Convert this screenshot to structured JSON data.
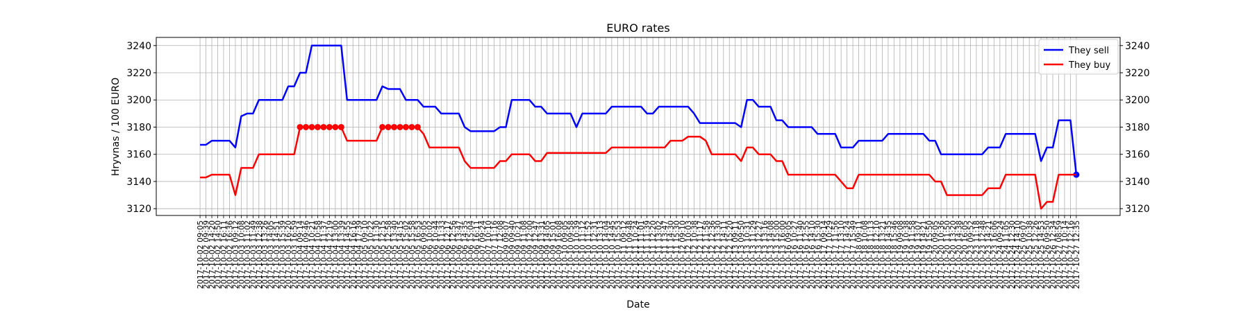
{
  "chart_data": {
    "type": "line",
    "title": "EURO rates",
    "x_label": "Date",
    "y_label": "Hryvnas / 100 EURO",
    "categories": [
      "2017-10-02 09:05",
      "2017-10-02 09:39",
      "2017-10-02 14:20",
      "2017-10-02 14:50",
      "2017-10-02 16:11",
      "2017-10-02 16:36",
      "2017-10-03 09:12",
      "2017-10-03 10:08",
      "2017-10-03 11:02",
      "2017-10-03 11:49",
      "2017-10-03 12:38",
      "2017-10-03 13:26",
      "2017-10-03 14:05",
      "2017-10-03 14:51",
      "2017-10-03 15:39",
      "2017-10-03 16:20",
      "2017-10-03 16:59",
      "2017-10-04 09:14",
      "2017-10-04 09:46",
      "2017-10-04 10:21",
      "2017-10-04 10:58",
      "2017-10-04 11:37",
      "2017-10-04 12:19",
      "2017-10-04 13:00",
      "2017-10-04 13:39",
      "2017-10-04 14:55",
      "2017-10-04 16:16",
      "2017-10-04 17:39",
      "2017-10-05 09:10",
      "2017-10-05 10:22",
      "2017-10-05 11:30",
      "2017-10-05 12:15",
      "2017-10-05 12:58",
      "2017-10-05 13:40",
      "2017-10-05 14:15",
      "2017-10-05 15:02",
      "2017-10-05 15:58",
      "2017-10-05 16:53",
      "2017-10-06 09:05",
      "2017-10-06 10:02",
      "2017-10-06 10:44",
      "2017-10-06 11:33",
      "2017-10-06 12:17",
      "2017-10-06 12:56",
      "2017-10-06 13:47",
      "2017-10-06 14:35",
      "2017-10-06 15:04",
      "2017-10-06 16:11",
      "2017-10-07 09:24",
      "2017-10-07 10:10",
      "2017-10-07 11:16",
      "2017-10-07 12:08",
      "2017-10-09 09:07",
      "2017-10-09 09:40",
      "2017-10-09 10:21",
      "2017-10-09 11:08",
      "2017-10-09 12:00",
      "2017-10-09 12:47",
      "2017-10-09 13:31",
      "2017-10-09 14:05",
      "2017-10-09 15:01",
      "2017-10-09 16:08",
      "2017-10-10 09:05",
      "2017-10-10 09:58",
      "2017-10-10 10:39",
      "2017-10-10 11:12",
      "2017-10-10 11:52",
      "2017-10-10 12:31",
      "2017-10-10 13:13",
      "2017-10-10 14:04",
      "2017-10-10 14:45",
      "2017-10-10 15:53",
      "2017-10-11 09:12",
      "2017-10-11 09:48",
      "2017-10-11 10:24",
      "2017-10-11 11:01",
      "2017-10-11 11:39",
      "2017-10-11 12:20",
      "2017-10-11 13:02",
      "2017-10-11 13:47",
      "2017-10-11 14:30",
      "2017-10-11 15:30",
      "2017-10-12 09:10",
      "2017-10-12 10:03",
      "2017-10-12 10:38",
      "2017-10-12 11:17",
      "2017-10-12 11:58",
      "2017-10-12 12:36",
      "2017-10-12 13:30",
      "2017-10-12 14:11",
      "2017-10-12 15:20",
      "2017-10-13 09:11",
      "2017-10-13 09:50",
      "2017-10-13 10:31",
      "2017-10-13 11:29",
      "2017-10-13 12:27",
      "2017-10-13 13:16",
      "2017-10-13 14:08",
      "2017-10-13 15:00",
      "2017-10-13 16:00",
      "2017-10-16 09:05",
      "2017-10-16 10:27",
      "2017-10-16 11:40",
      "2017-10-16 12:55",
      "2017-10-16 14:10",
      "2017-10-16 15:30",
      "2017-10-17 09:14",
      "2017-10-17 10:29",
      "2017-10-17 11:56",
      "2017-10-17 13:10",
      "2017-10-17 14:24",
      "2017-10-17 15:49",
      "2017-10-18 09:11",
      "2017-10-18 10:08",
      "2017-10-18 11:13",
      "2017-10-18 12:10",
      "2017-10-18 13:21",
      "2017-10-18 14:35",
      "2017-10-18 15:46",
      "2017-10-19 09:08",
      "2017-10-19 10:38",
      "2017-10-19 11:58",
      "2017-10-19 13:07",
      "2017-10-19 14:21",
      "2017-10-19 15:50",
      "2017-10-20 09:05",
      "2017-10-20 10:36",
      "2017-10-20 11:50",
      "2017-10-20 13:20",
      "2017-10-20 14:38",
      "2017-10-20 16:05",
      "2017-10-23 09:52",
      "2017-10-23 11:18",
      "2017-10-23 12:48",
      "2017-10-23 14:21",
      "2017-10-23 16:06",
      "2017-10-24 09:24",
      "2017-10-24 11:05",
      "2017-10-24 12:30",
      "2017-10-24 14:10",
      "2017-10-25 09:07",
      "2017-10-25 10:38",
      "2017-10-25 12:26",
      "2017-10-25 14:53",
      "2017-10-26 09:50",
      "2017-10-26 12:34",
      "2017-10-27 08:59",
      "2017-10-27 10:14",
      "2017-10-27 12:16",
      "2017-10-27 12:35"
    ],
    "series": [
      {
        "name": "They sell",
        "color": "#0000ff",
        "markers": [
          149
        ],
        "values": [
          3167,
          3167,
          3170,
          3170,
          3170,
          3170,
          3165,
          3188,
          3190,
          3190,
          3200,
          3200,
          3200,
          3200,
          3200,
          3210,
          3210,
          3220,
          3220,
          3240,
          3240,
          3240,
          3240,
          3240,
          3240,
          3200,
          3200,
          3200,
          3200,
          3200,
          3200,
          3210,
          3208,
          3208,
          3208,
          3200,
          3200,
          3200,
          3195,
          3195,
          3195,
          3190,
          3190,
          3190,
          3190,
          3180,
          3177,
          3177,
          3177,
          3177,
          3177,
          3180,
          3180,
          3200,
          3200,
          3200,
          3200,
          3195,
          3195,
          3190,
          3190,
          3190,
          3190,
          3190,
          3180,
          3190,
          3190,
          3190,
          3190,
          3190,
          3195,
          3195,
          3195,
          3195,
          3195,
          3195,
          3190,
          3190,
          3195,
          3195,
          3195,
          3195,
          3195,
          3195,
          3190,
          3183,
          3183,
          3183,
          3183,
          3183,
          3183,
          3183,
          3180,
          3200,
          3200,
          3195,
          3195,
          3195,
          3185,
          3185,
          3180,
          3180,
          3180,
          3180,
          3180,
          3175,
          3175,
          3175,
          3175,
          3165,
          3165,
          3165,
          3170,
          3170,
          3170,
          3170,
          3170,
          3175,
          3175,
          3175,
          3175,
          3175,
          3175,
          3175,
          3170,
          3170,
          3160,
          3160,
          3160,
          3160,
          3160,
          3160,
          3160,
          3160,
          3165,
          3165,
          3165,
          3175,
          3175,
          3175,
          3175,
          3175,
          3175,
          3155,
          3165,
          3165,
          3185,
          3185,
          3185,
          3145
        ]
      },
      {
        "name": "They buy",
        "color": "#ff0000",
        "markers": [
          17,
          18,
          19,
          20,
          21,
          22,
          23,
          24,
          31,
          32,
          33,
          34,
          35,
          36,
          37
        ],
        "values": [
          3143,
          3143,
          3145,
          3145,
          3145,
          3145,
          3130,
          3150,
          3150,
          3150,
          3160,
          3160,
          3160,
          3160,
          3160,
          3160,
          3160,
          3180,
          3180,
          3180,
          3180,
          3180,
          3180,
          3180,
          3180,
          3170,
          3170,
          3170,
          3170,
          3170,
          3170,
          3180,
          3180,
          3180,
          3180,
          3180,
          3180,
          3180,
          3175,
          3165,
          3165,
          3165,
          3165,
          3165,
          3165,
          3155,
          3150,
          3150,
          3150,
          3150,
          3150,
          3155,
          3155,
          3160,
          3160,
          3160,
          3160,
          3155,
          3155,
          3161,
          3161,
          3161,
          3161,
          3161,
          3161,
          3161,
          3161,
          3161,
          3161,
          3161,
          3165,
          3165,
          3165,
          3165,
          3165,
          3165,
          3165,
          3165,
          3165,
          3165,
          3170,
          3170,
          3170,
          3173,
          3173,
          3173,
          3170,
          3160,
          3160,
          3160,
          3160,
          3160,
          3155,
          3165,
          3165,
          3160,
          3160,
          3160,
          3155,
          3155,
          3145,
          3145,
          3145,
          3145,
          3145,
          3145,
          3145,
          3145,
          3145,
          3140,
          3135,
          3135,
          3145,
          3145,
          3145,
          3145,
          3145,
          3145,
          3145,
          3145,
          3145,
          3145,
          3145,
          3145,
          3145,
          3140,
          3140,
          3130,
          3130,
          3130,
          3130,
          3130,
          3130,
          3130,
          3135,
          3135,
          3135,
          3145,
          3145,
          3145,
          3145,
          3145,
          3145,
          3120,
          3125,
          3125,
          3145,
          3145,
          3145,
          3145
        ]
      }
    ],
    "ylim": [
      3115,
      3246
    ],
    "yticks": [
      3120,
      3140,
      3160,
      3180,
      3200,
      3220,
      3240
    ],
    "y2ticks_mirror": true,
    "grid": true,
    "legend": "upper right"
  }
}
